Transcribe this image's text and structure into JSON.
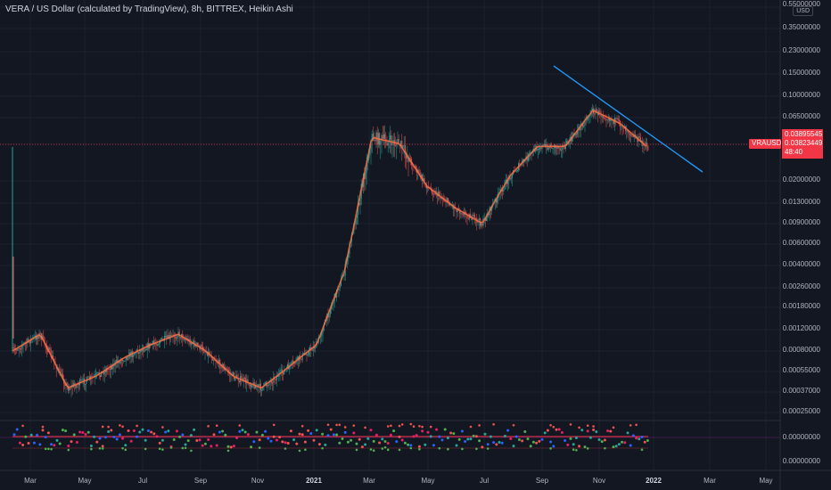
{
  "header": {
    "title": "VERA / US Dollar (calculated by TradingView), 8h, BITTREX, Heikin Ashi"
  },
  "price_axis": {
    "currency": "USD",
    "labels": [
      "0.55000000",
      "0.35000000",
      "0.23000000",
      "0.15000000",
      "0.10000000",
      "0.06500000",
      "0.02000000",
      "0.01300000",
      "0.00900000",
      "0.00600000",
      "0.00400000",
      "0.00260000",
      "0.00180000",
      "0.00120000",
      "0.00080000",
      "0.00055000",
      "0.00037000",
      "0.00025000",
      "0.00000000",
      "0.00000000"
    ]
  },
  "time_axis": {
    "labels": [
      "Mar",
      "May",
      "Jul",
      "Sep",
      "Nov",
      "2021",
      "Mar",
      "May",
      "Jul",
      "Sep",
      "Nov",
      "2022",
      "Mar",
      "May"
    ]
  },
  "tags": {
    "ticker": "VRAUSD",
    "last_price": "0.03895545",
    "close_price": "0.03823449",
    "countdown": "48:40"
  },
  "colors": {
    "background": "#131722",
    "up": "#26a69a",
    "down": "#ef5350",
    "trendline": "#2196f3",
    "tag": "#f23645",
    "grid": "#1e222d"
  },
  "chart_data": {
    "type": "line",
    "x_labels": [
      "Mar",
      "May",
      "Jul",
      "Sep",
      "Nov",
      "2021",
      "Mar",
      "May",
      "Jul",
      "Sep",
      "Nov",
      "2022",
      "Mar",
      "May"
    ],
    "y_scale": "log",
    "series": [
      {
        "values": [
          0.0008,
          0.0011,
          0.0004,
          0.0005,
          0.0007,
          0.0009,
          0.0011,
          0.0008,
          0.0005,
          0.0004,
          0.0006,
          0.0009,
          0.0035,
          0.045,
          0.04,
          0.018,
          0.012,
          0.009,
          0.022,
          0.038,
          0.038,
          0.075,
          0.058,
          0.037
        ]
      }
    ]
  }
}
